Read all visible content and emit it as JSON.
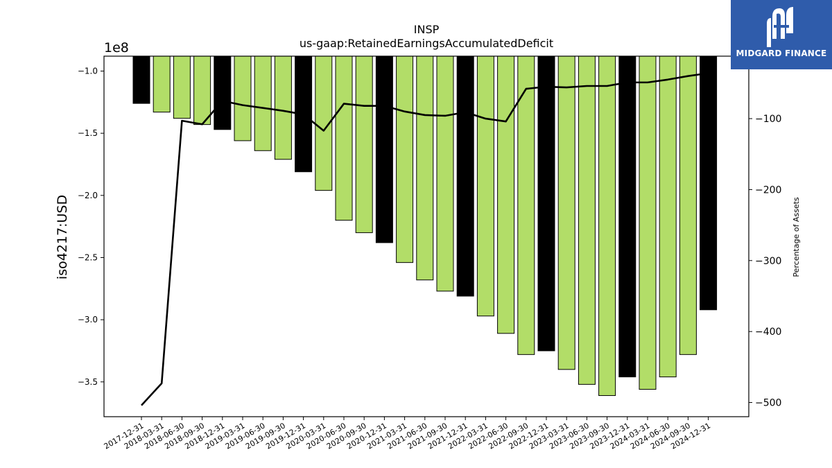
{
  "chart_data": {
    "type": "bar",
    "title": "INSP",
    "subtitle": "us-gaap:RetainedEarningsAccumulatedDeficit",
    "ylabel": "iso4217:USD",
    "y2label": "Percentage of Assets",
    "y_multiplier_label": "1e8",
    "ylim": [
      -3.78,
      -0.88
    ],
    "y2lim": [
      -520,
      -12
    ],
    "yticks": [
      -1.0,
      -1.5,
      -2.0,
      -2.5,
      -3.0,
      -3.5
    ],
    "ytick_labels": [
      "−1.0",
      "−1.5",
      "−2.0",
      "−2.5",
      "−3.0",
      "−3.5"
    ],
    "y2ticks": [
      -100,
      -200,
      -300,
      -400,
      -500
    ],
    "y2tick_labels": [
      "−100",
      "−200",
      "−300",
      "−400",
      "−500"
    ],
    "bar_baseline": -0.88,
    "categories": [
      "2017-12-31",
      "2018-03-31",
      "2018-06-30",
      "2018-09-30",
      "2018-12-31",
      "2019-03-31",
      "2019-06-30",
      "2019-09-30",
      "2019-12-31",
      "2020-03-31",
      "2020-06-30",
      "2020-09-30",
      "2020-12-31",
      "2021-03-31",
      "2021-06-30",
      "2021-09-30",
      "2021-12-31",
      "2022-03-31",
      "2022-06-30",
      "2022-09-30",
      "2022-12-31",
      "2023-03-31",
      "2023-06-30",
      "2023-09-30",
      "2023-12-31",
      "2024-03-31",
      "2024-06-30",
      "2024-09-30",
      "2024-12-31"
    ],
    "series": [
      {
        "type": "bar",
        "values": [
          -1.26,
          -1.33,
          -1.38,
          -1.43,
          -1.47,
          -1.56,
          -1.64,
          -1.71,
          -1.81,
          -1.96,
          -2.2,
          -2.3,
          -2.38,
          -2.54,
          -2.68,
          -2.77,
          -2.81,
          -2.97,
          -3.11,
          -3.28,
          -3.25,
          -3.4,
          -3.52,
          -3.61,
          -3.46,
          -3.56,
          -3.46,
          -3.28,
          -2.92
        ],
        "colors": [
          "#000000",
          "#b2dd68",
          "#b2dd68",
          "#b2dd68",
          "#000000",
          "#b2dd68",
          "#b2dd68",
          "#b2dd68",
          "#000000",
          "#b2dd68",
          "#b2dd68",
          "#b2dd68",
          "#000000",
          "#b2dd68",
          "#b2dd68",
          "#b2dd68",
          "#000000",
          "#b2dd68",
          "#b2dd68",
          "#b2dd68",
          "#000000",
          "#b2dd68",
          "#b2dd68",
          "#b2dd68",
          "#000000",
          "#b2dd68",
          "#b2dd68",
          "#b2dd68",
          "#000000"
        ]
      },
      {
        "type": "line",
        "axis": "right",
        "color": "#000000",
        "values": [
          -504,
          -473,
          -103,
          -108,
          -75,
          -81,
          -85,
          -89,
          -94,
          -117,
          -79,
          -82,
          -82,
          -90,
          -95,
          -96,
          -91,
          -100,
          -104,
          -58,
          -55,
          -56,
          -54,
          -54,
          -49,
          -49,
          -45,
          -40,
          -36
        ]
      }
    ],
    "grid": false,
    "legend": "none"
  },
  "colors": {
    "bar_green": "#b2dd68",
    "bar_black": "#000000",
    "logo_bg": "#2f5cab",
    "logo_fg": "#ffffff"
  },
  "logo": {
    "text": "MIDGARD FINANCE",
    "icon": "midgard-logo-icon"
  }
}
